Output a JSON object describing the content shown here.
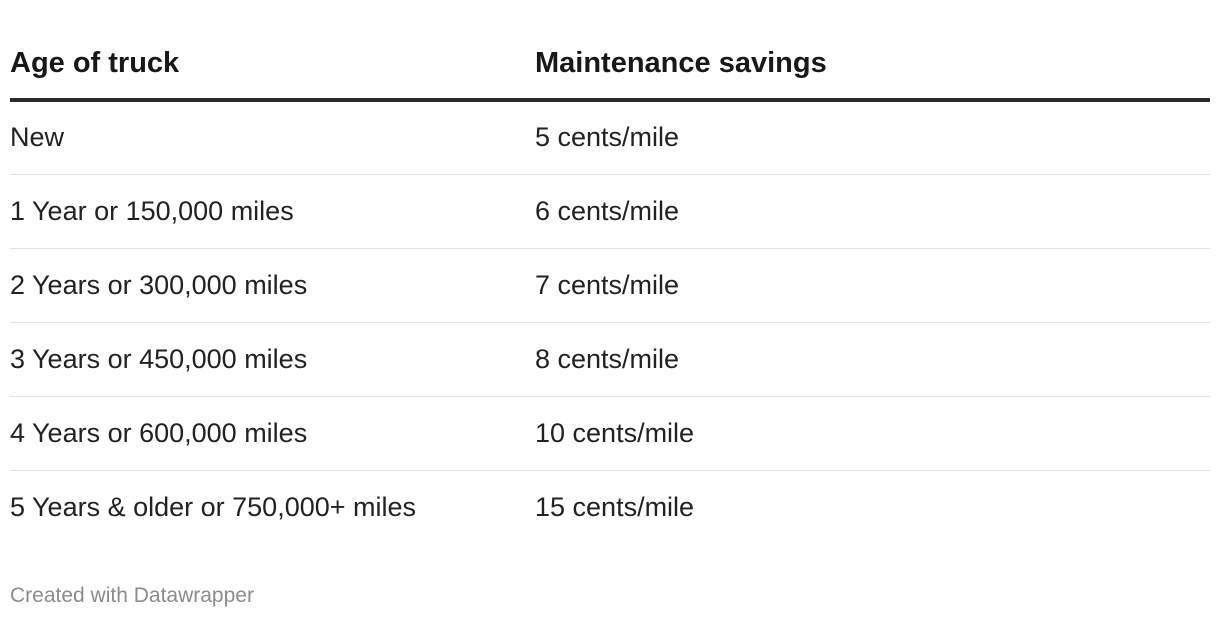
{
  "chart_data": {
    "type": "table",
    "columns": [
      "Age of truck",
      "Maintenance savings"
    ],
    "rows": [
      [
        "New",
        "5 cents/mile"
      ],
      [
        "1 Year or 150,000 miles",
        "6 cents/mile"
      ],
      [
        "2 Years or 300,000 miles",
        "7 cents/mile"
      ],
      [
        "3 Years or 450,000 miles",
        "8 cents/mile"
      ],
      [
        "4 Years or 600,000 miles",
        "10 cents/mile"
      ],
      [
        "5 Years & older or 750,000+ miles",
        "15 cents/mile"
      ]
    ]
  },
  "footer": {
    "credit": "Created with Datawrapper"
  },
  "colors": {
    "header_rule": "#2b2b2b",
    "row_rule": "#e4e4e4",
    "footer_text": "#8c8c8c"
  }
}
